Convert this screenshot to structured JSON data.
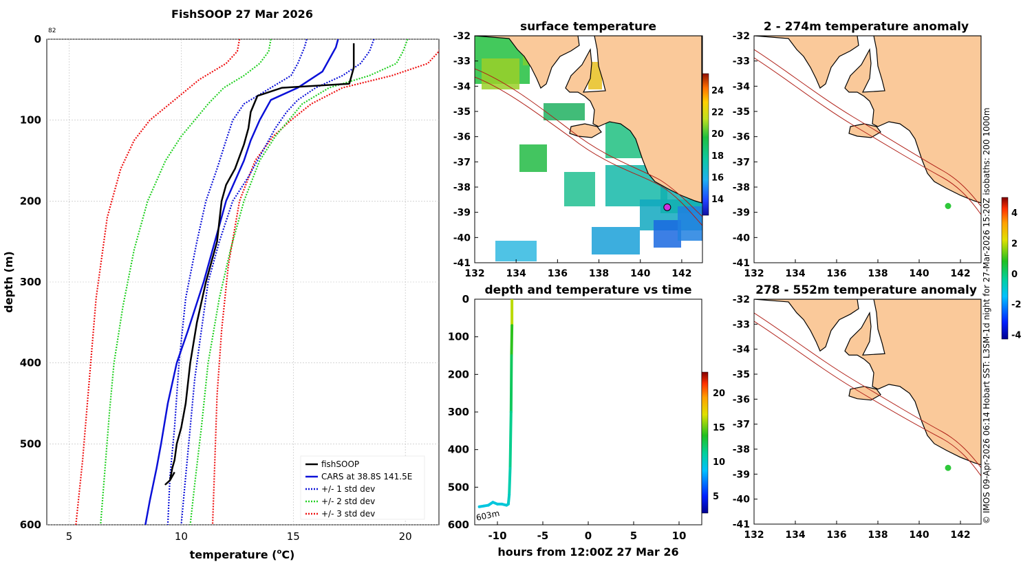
{
  "colors": {
    "fish": "#000000",
    "cars": "#0a10d8",
    "sd1": "#0a10d8",
    "sd2": "#22d022",
    "sd3": "#ee1111",
    "land": "#fac99a",
    "isobath": "#b02018",
    "grid": "#bbbbbb",
    "marker_magenta": "#d030e0",
    "marker_green": "#2ec83a"
  },
  "profile": {
    "title": "FishSOOP 27 Mar 2026",
    "corner_label": "82",
    "xlabel": "temperature (",
    "xlabel_sup": "o",
    "xlabel_end": "C)",
    "ylabel": "depth (m)",
    "legend": [
      "fishSOOP",
      "CARS at 38.8S 141.5E",
      "+/- 1 std dev",
      "+/- 2 std dev",
      "+/- 3 std dev"
    ]
  },
  "chart_data": [
    {
      "type": "line",
      "title": "FishSOOP 27 Mar 2026",
      "xlabel": "temperature (oC)",
      "ylabel": "depth (m)",
      "xlim": [
        4,
        21.5
      ],
      "ylim": [
        600,
        0
      ],
      "xticks": [
        5,
        10,
        15,
        20
      ],
      "yticks": [
        0,
        100,
        200,
        300,
        400,
        500,
        600
      ],
      "grid": true,
      "legend_position": "bottom-right",
      "series": [
        {
          "name": "fishSOOP",
          "temp": [
            17.7,
            17.7,
            17.6,
            17.5,
            14.5,
            13.4,
            13.1,
            13.0,
            12.8,
            12.4,
            12.0,
            11.8,
            11.6,
            11.1,
            10.7,
            10.4,
            10.2,
            10.0,
            9.8,
            9.7,
            9.6,
            9.5,
            9.3,
            9.5,
            9.7
          ],
          "depth": [
            5,
            35,
            45,
            55,
            60,
            70,
            90,
            110,
            130,
            160,
            180,
            200,
            250,
            300,
            350,
            400,
            450,
            480,
            500,
            520,
            530,
            545,
            550,
            545,
            535
          ]
        },
        {
          "name": "CARS at 38.8S 141.5E",
          "temp": [
            17.0,
            16.9,
            16.7,
            16.3,
            15.2,
            14.0,
            13.5,
            13.1,
            12.8,
            12.4,
            12.0,
            11.5,
            11.0,
            10.3,
            9.8,
            9.4,
            9.1,
            8.9,
            8.6,
            8.4
          ],
          "depth": [
            0,
            10,
            20,
            40,
            60,
            75,
            100,
            125,
            150,
            175,
            200,
            250,
            300,
            360,
            400,
            450,
            500,
            530,
            570,
            600
          ]
        },
        {
          "name": "+/- 1 std dev (upper)",
          "temp": [
            18.6,
            18.4,
            18.0,
            17.2,
            16.0,
            15.2,
            14.7,
            14.2,
            13.6,
            13.0,
            12.3,
            11.7,
            11.2,
            10.9,
            10.6,
            10.4,
            10.2,
            10.0
          ],
          "depth": [
            0,
            15,
            30,
            45,
            60,
            75,
            90,
            110,
            140,
            170,
            200,
            250,
            300,
            360,
            420,
            480,
            540,
            600
          ]
        },
        {
          "name": "+/- 1 std dev (lower)",
          "temp": [
            15.6,
            15.5,
            15.2,
            14.9,
            14.0,
            12.8,
            12.3,
            12.0,
            11.6,
            11.1,
            10.7,
            10.2,
            9.9,
            9.7,
            9.5,
            9.4
          ],
          "depth": [
            0,
            10,
            30,
            45,
            60,
            80,
            100,
            125,
            160,
            200,
            250,
            320,
            400,
            480,
            540,
            600
          ]
        },
        {
          "name": "+/- 2 std dev (upper)",
          "temp": [
            20.1,
            19.9,
            19.6,
            18.4,
            16.6,
            15.4,
            14.8,
            14.2,
            13.5,
            12.8,
            12.2,
            11.7,
            11.2,
            10.9,
            10.6,
            10.4
          ],
          "depth": [
            0,
            15,
            30,
            45,
            60,
            80,
            100,
            120,
            150,
            200,
            260,
            320,
            400,
            480,
            550,
            600
          ]
        },
        {
          "name": "+/- 2 std dev (lower)",
          "temp": [
            14.0,
            13.9,
            13.5,
            12.8,
            11.9,
            11.2,
            10.6,
            10.0,
            9.3,
            8.5,
            7.9,
            7.4,
            7.0,
            6.8,
            6.6,
            6.4
          ],
          "depth": [
            0,
            15,
            30,
            45,
            60,
            80,
            100,
            120,
            150,
            200,
            260,
            330,
            400,
            460,
            530,
            600
          ]
        },
        {
          "name": "+/- 3 std dev (upper)",
          "temp": [
            21.7,
            21.5,
            21.0,
            19.4,
            17.2,
            15.8,
            14.9,
            14.1,
            13.3,
            12.6,
            12.1,
            11.8,
            11.6,
            11.5,
            11.4
          ],
          "depth": [
            0,
            15,
            30,
            45,
            60,
            80,
            100,
            120,
            150,
            200,
            280,
            360,
            440,
            520,
            600
          ]
        },
        {
          "name": "+/- 3 std dev (lower)",
          "temp": [
            12.6,
            12.5,
            12.0,
            10.8,
            9.7,
            8.6,
            7.9,
            7.3,
            6.7,
            6.2,
            5.9,
            5.6,
            5.3
          ],
          "depth": [
            0,
            15,
            30,
            50,
            75,
            100,
            125,
            160,
            220,
            320,
            420,
            520,
            600
          ]
        }
      ]
    },
    {
      "type": "heatmap",
      "title": "surface temperature",
      "xlim": [
        132,
        143
      ],
      "ylim": [
        -41,
        -32
      ],
      "xticks": [
        132,
        134,
        136,
        138,
        140,
        142
      ],
      "yticks": [
        -32,
        -33,
        -34,
        -35,
        -36,
        -37,
        -38,
        -39,
        -40,
        -41
      ],
      "colorbar": {
        "min": 12.5,
        "max": 25.5,
        "ticks": [
          14,
          16,
          18,
          20,
          22,
          24
        ]
      },
      "marker": {
        "lon": 141.3,
        "lat": -38.8
      }
    },
    {
      "type": "scatter",
      "title": "depth and temperature vs time",
      "xlabel": "hours from 12:00Z 27 Mar 26",
      "xlim": [
        -12.5,
        12.5
      ],
      "ylim": [
        600,
        0
      ],
      "xticks": [
        -10,
        -5,
        0,
        5,
        10
      ],
      "yticks": [
        0,
        100,
        200,
        300,
        400,
        500,
        600
      ],
      "annotation": "603m",
      "colorbar": {
        "min": 2.5,
        "max": 23,
        "ticks": [
          5,
          10,
          15,
          20
        ]
      },
      "hours": [
        -8.4,
        -8.4,
        -8.45,
        -8.5,
        -8.6,
        -8.7,
        -8.8,
        -9.0,
        -9.5,
        -10.0,
        -10.5,
        -11.0,
        -11.5,
        -12.0
      ],
      "depth": [
        0,
        70,
        150,
        300,
        450,
        520,
        545,
        548,
        545,
        545,
        540,
        548,
        550,
        552
      ],
      "temp": [
        17.5,
        15.0,
        13.0,
        12.0,
        11.0,
        10.5,
        10.0,
        9.8,
        9.6,
        9.6,
        9.5,
        9.5,
        9.5,
        9.4
      ]
    },
    {
      "type": "heatmap",
      "title": "2 - 274m temperature anomaly",
      "xlim": [
        132,
        143
      ],
      "ylim": [
        -41,
        -32
      ],
      "xticks": [
        132,
        134,
        136,
        138,
        140,
        142
      ],
      "yticks": [
        -32,
        -33,
        -34,
        -35,
        -36,
        -37,
        -38,
        -39,
        -40,
        -41
      ],
      "marker": {
        "lon": 141.4,
        "lat": -38.75
      }
    },
    {
      "type": "heatmap",
      "title": "278 - 552m temperature anomaly",
      "xlim": [
        132,
        143
      ],
      "ylim": [
        -41,
        -32
      ],
      "xticks": [
        132,
        134,
        136,
        138,
        140,
        142
      ],
      "yticks": [
        -32,
        -33,
        -34,
        -35,
        -36,
        -37,
        -38,
        -39,
        -40,
        -41
      ],
      "marker": {
        "lon": 141.4,
        "lat": -38.75
      },
      "colorbar": {
        "min": -4.3,
        "max": 5.0,
        "ticks": [
          -4,
          -2,
          0,
          2,
          4
        ]
      }
    }
  ],
  "panels": {
    "sst_title": "surface temperature",
    "time_title": "depth and temperature vs time",
    "time_xlabel": "hours from 12:00Z 27 Mar 26",
    "anom1_title": "2 - 274m temperature anomaly",
    "anom2_title": "278 - 552m temperature anomaly",
    "depth_annotation": "603m",
    "credit": "© IMOS 09-Apr-2026 06:14 Hobart SST: L3SM-1d night for 27-Mar-2026 15:20Z isobaths: 200  1000m"
  }
}
